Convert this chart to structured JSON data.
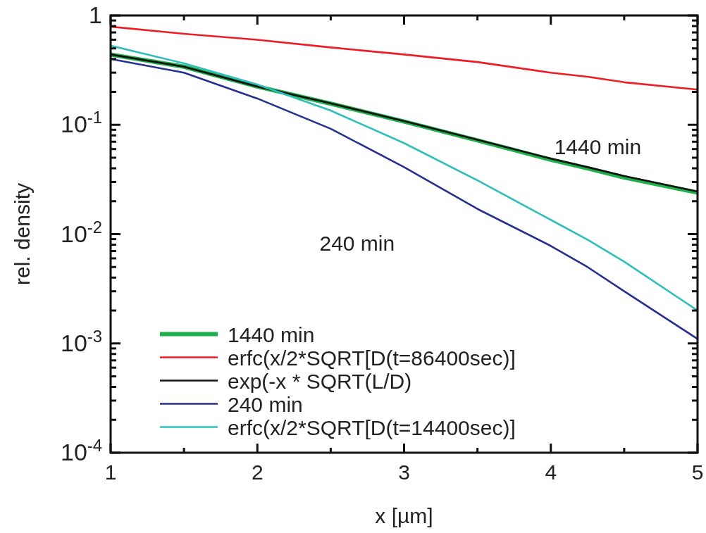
{
  "chart_data": {
    "type": "line",
    "xlabel": "x [µm]",
    "ylabel": "rel. density",
    "log": "y",
    "grid": false,
    "legend": "bottom left",
    "xlim": [
      1,
      5
    ],
    "ylim": [
      0.0001,
      1
    ],
    "xticks": [
      1,
      {
        "value": 1.5,
        "label": null
      },
      2,
      {
        "value": 2.5,
        "label": null
      },
      3,
      {
        "value": 3.5,
        "label": null
      },
      4,
      {
        "value": 4.5,
        "label": null
      },
      5
    ],
    "yticks": [
      {
        "value": 0.0001,
        "label": "10$^{-4}$"
      },
      {
        "value": 0.0002,
        "label": null
      },
      {
        "value": 0.0003,
        "label": null
      },
      {
        "value": 0.0004,
        "label": null
      },
      {
        "value": 0.0005,
        "label": null
      },
      {
        "value": 0.0006,
        "label": null
      },
      {
        "value": 0.0007,
        "label": null
      },
      {
        "value": 0.0008,
        "label": null
      },
      {
        "value": 0.0009,
        "label": null
      },
      {
        "value": 0.001,
        "label": "10$^{-3}$"
      },
      {
        "value": 0.002,
        "label": null
      },
      {
        "value": 0.003,
        "label": null
      },
      {
        "value": 0.004,
        "label": null
      },
      {
        "value": 0.005,
        "label": null
      },
      {
        "value": 0.006,
        "label": null
      },
      {
        "value": 0.007,
        "label": null
      },
      {
        "value": 0.008,
        "label": null
      },
      {
        "value": 0.009,
        "label": null
      },
      {
        "value": 0.01,
        "label": "10$^{-2}$"
      },
      {
        "value": 0.02,
        "label": null
      },
      {
        "value": 0.03,
        "label": null
      },
      {
        "value": 0.04,
        "label": null
      },
      {
        "value": 0.05,
        "label": null
      },
      {
        "value": 0.06,
        "label": null
      },
      {
        "value": 0.07,
        "label": null
      },
      {
        "value": 0.08,
        "label": null
      },
      {
        "value": 0.09,
        "label": null
      },
      {
        "value": 0.1,
        "label": "10$^{-1}$"
      },
      {
        "value": 0.2,
        "label": null
      },
      {
        "value": 0.3,
        "label": null
      },
      {
        "value": 0.4,
        "label": null
      },
      {
        "value": 0.5,
        "label": null
      },
      {
        "value": 0.6,
        "label": null
      },
      {
        "value": 0.7,
        "label": null
      },
      {
        "value": 0.8,
        "label": null
      },
      {
        "value": 0.9,
        "label": null
      },
      {
        "value": 1,
        "label": "1"
      }
    ],
    "x": [
      1,
      1.5,
      2,
      2.5,
      3,
      3.5,
      4,
      4.25,
      4.5,
      5
    ],
    "series": [
      {
        "name": "1440 min",
        "color": "#1db04b",
        "values": [
          0.44,
          0.34,
          0.224,
          0.156,
          0.107,
          0.072,
          0.048,
          0.04,
          0.033,
          0.024
        ]
      },
      {
        "name": "erfc(x/2*SQRT[D(t=86400sec)]",
        "color": "#ee1c25",
        "values": [
          0.79,
          0.68,
          0.6,
          0.51,
          0.44,
          0.375,
          0.3,
          0.275,
          0.245,
          0.21
        ]
      },
      {
        "name": "exp(-x * SQRT(L/D)",
        "color": "#111111",
        "values": [
          0.44,
          0.34,
          0.224,
          0.157,
          0.108,
          0.073,
          0.049,
          0.041,
          0.034,
          0.0245
        ]
      },
      {
        "name": "240 min",
        "color": "#25308f",
        "values": [
          0.4,
          0.3,
          0.174,
          0.092,
          0.041,
          0.017,
          0.0078,
          0.005,
          0.003,
          0.0011
        ]
      },
      {
        "name": "erfc(x/2*SQRT[D(t=14400sec)]",
        "color": "#2fbfba",
        "values": [
          0.53,
          0.365,
          0.234,
          0.135,
          0.068,
          0.031,
          0.0135,
          0.0089,
          0.0056,
          0.002
        ]
      }
    ],
    "annotations": [
      "1440 min",
      "240 min"
    ]
  }
}
